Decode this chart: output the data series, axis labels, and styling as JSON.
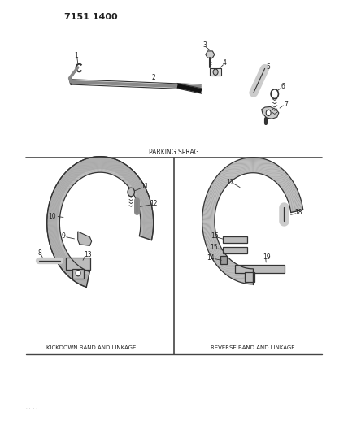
{
  "title": "7151 1400",
  "bg_color": "#ffffff",
  "line_color": "#333333",
  "text_color": "#222222",
  "section_label_parking": "PARKING SPRAG",
  "section_label_kickdown": "KICKDOWN BAND AND LINKAGE",
  "section_label_reverse": "REVERSE BAND AND LINKAGE",
  "fig_width": 4.28,
  "fig_height": 5.33,
  "dpi": 100
}
